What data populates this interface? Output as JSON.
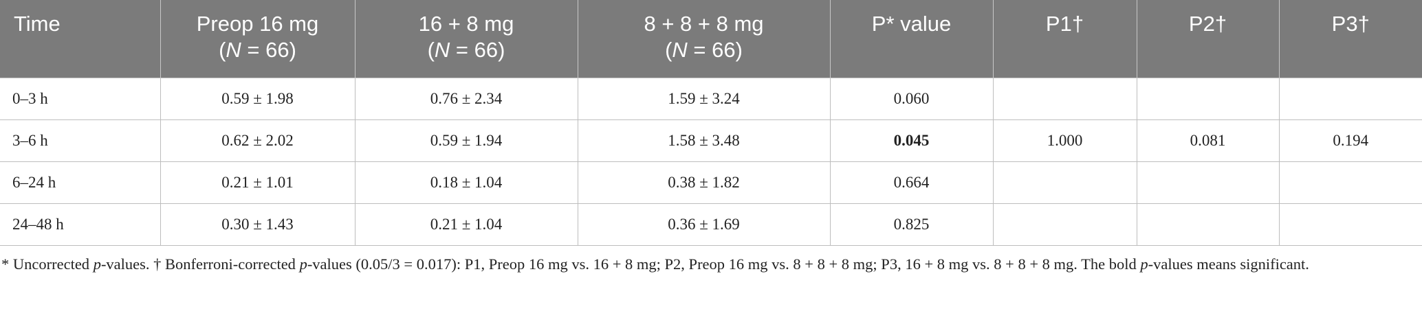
{
  "table": {
    "header": [
      {
        "line1": "Time"
      },
      {
        "line1": "Preop 16 mg",
        "line2": [
          "(",
          "N",
          " = 66)"
        ]
      },
      {
        "line1": "16 + 8 mg",
        "line2": [
          "(",
          "N",
          " = 66)"
        ]
      },
      {
        "line1": "8 + 8 + 8 mg",
        "line2": [
          "(",
          "N",
          " = 66)"
        ]
      },
      {
        "line1": "P* value"
      },
      {
        "line1": "P1†"
      },
      {
        "line1": "P2†"
      },
      {
        "line1": "P3†"
      }
    ],
    "rows": [
      [
        "0–3 h",
        "0.59 ± 1.98",
        "0.76 ± 2.34",
        "1.59 ± 3.24",
        "0.060",
        null,
        null,
        null
      ],
      [
        "3–6 h",
        "0.62 ± 2.02",
        "0.59 ± 1.94",
        "1.58 ± 3.48",
        "0.045",
        "1.000",
        "0.081",
        "0.194"
      ],
      [
        "6–24 h",
        "0.21 ± 1.01",
        "0.18 ± 1.04",
        "0.38 ± 1.82",
        "0.664",
        null,
        null,
        null
      ],
      [
        "24–48 h",
        "0.30 ± 1.43",
        "0.21 ± 1.04",
        "0.36 ± 1.69",
        "0.825",
        null,
        null,
        null
      ]
    ]
  },
  "footnote": [
    "* Uncorrected ",
    "p",
    "-values. † Bonferroni-corrected ",
    "p",
    "-values (0.05/3 = 0.017): P1, Preop 16 mg vs. 16 + 8 mg; P2, Preop 16 mg vs. 8 + 8 + 8 mg; P3, 16 + 8 mg vs. 8 + 8 + 8 mg. The bold ",
    "p",
    "-values means significant."
  ]
}
